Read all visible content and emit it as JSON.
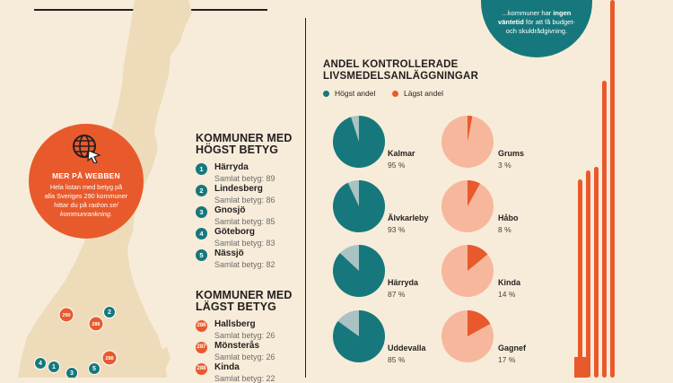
{
  "promo": {
    "icon": "globe-cursor-icon",
    "title": "MER PÅ WEBBEN",
    "line1": "Hela listan med betyg på",
    "line2": "alla Sveriges 290 kommuner",
    "line3": "hittar du på",
    "link1": "radron.se/",
    "link2": "kommunrankning",
    "end": "."
  },
  "best": {
    "heading_line1": "KOMMUNER MED",
    "heading_line2": "HÖGST BETYG",
    "items": [
      {
        "rank": "1",
        "name": "Härryda",
        "score": "Samlat betyg: 89"
      },
      {
        "rank": "2",
        "name": "Lindesberg",
        "score": "Samlat betyg: 86"
      },
      {
        "rank": "3",
        "name": "Gnosjö",
        "score": "Samlat betyg: 85"
      },
      {
        "rank": "4",
        "name": "Göteborg",
        "score": "Samlat betyg: 83"
      },
      {
        "rank": "5",
        "name": "Nässjö",
        "score": "Samlat betyg: 82"
      }
    ]
  },
  "worst": {
    "heading_line1": "KOMMUNER MED",
    "heading_line2": "LÄGST BETYG",
    "items": [
      {
        "rank": "286",
        "name": "Hallsberg",
        "score": "Samlat betyg: 26"
      },
      {
        "rank": "287",
        "name": "Mönsterås",
        "score": "Samlat betyg: 26"
      },
      {
        "rank": "288",
        "name": "Kinda",
        "score": "Samlat betyg: 22"
      }
    ]
  },
  "map_markers": [
    {
      "label": "290",
      "kind": "worst"
    },
    {
      "label": "286",
      "kind": "worst"
    },
    {
      "label": "2",
      "kind": "best"
    },
    {
      "label": "288",
      "kind": "worst"
    },
    {
      "label": "4",
      "kind": "best"
    },
    {
      "label": "1",
      "kind": "best"
    },
    {
      "label": "5",
      "kind": "best"
    },
    {
      "label": "3",
      "kind": "best"
    }
  ],
  "quote": {
    "prefix": "...kommuner har ",
    "bold1": "ingen",
    "bold2": "väntetid",
    "rest": " för att få budget- och skuldrådgivning."
  },
  "chart_data": {
    "type": "pie",
    "title_line1": "ANDEL KONTROLLERADE",
    "title_line2": "LIVSMEDELSANLÄGGNINGAR",
    "legend": [
      {
        "label": "Högst andel",
        "color": "#16787c"
      },
      {
        "label": "Lägst andel",
        "color": "#e85a2c"
      }
    ],
    "highest": [
      {
        "name": "Kalmar",
        "value": 95,
        "label": "95 %"
      },
      {
        "name": "Älvkarleby",
        "value": 93,
        "label": "93 %"
      },
      {
        "name": "Härryda",
        "value": 87,
        "label": "87 %"
      },
      {
        "name": "Uddevalla",
        "value": 85,
        "label": "85 %"
      }
    ],
    "lowest": [
      {
        "name": "Grums",
        "value": 3,
        "label": "3 %"
      },
      {
        "name": "Håbo",
        "value": 8,
        "label": "8 %"
      },
      {
        "name": "Kinda",
        "value": 14,
        "label": "14 %"
      },
      {
        "name": "Gagnef",
        "value": 17,
        "label": "17 %"
      }
    ],
    "colors": {
      "high_fill": "#16787c",
      "high_rest": "#a9c3c4",
      "low_fill": "#e85a2c",
      "low_rest": "#f7b79c"
    }
  }
}
